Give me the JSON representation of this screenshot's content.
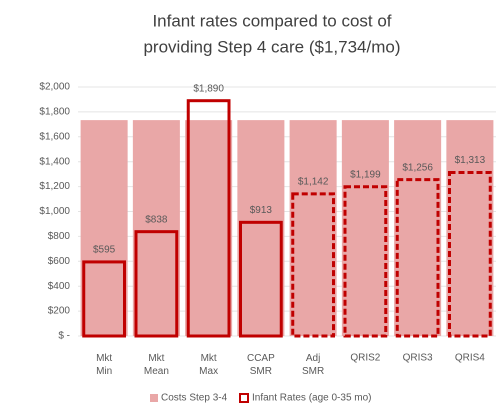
{
  "chart_data": {
    "type": "bar",
    "title": [
      "Infant rates compared to cost of",
      "providing Step 4 care ($1,734/mo)"
    ],
    "categories": [
      "Mkt Min",
      "Mkt Mean",
      "Mkt Max",
      "CCAP SMR",
      "Adj SMR",
      "QRIS2",
      "QRIS3",
      "QRIS4"
    ],
    "series": [
      {
        "name": "Costs Step 3-4",
        "color": "#e9a7a7",
        "values": [
          1734,
          1734,
          1734,
          1734,
          1734,
          1734,
          1734,
          1734
        ]
      },
      {
        "name": "Infant Rates (age 0-35 mo)",
        "color": "#c00000",
        "values": [
          595,
          838,
          1890,
          913,
          1142,
          1199,
          1256,
          1313
        ],
        "value_labels": [
          "$595",
          "$838",
          "$1,890",
          "$913",
          "$1,142",
          "$1,199",
          "$1,256",
          "$1,313"
        ],
        "line_styles": [
          "solid",
          "solid",
          "solid",
          "solid",
          "dashed",
          "dashed",
          "dashed",
          "dashed"
        ]
      }
    ],
    "ylim": [
      0,
      2000
    ],
    "yticks": [
      {
        "value": 0,
        "label": "$ -"
      },
      {
        "value": 200,
        "label": "$200"
      },
      {
        "value": 400,
        "label": "$400"
      },
      {
        "value": 600,
        "label": "$600"
      },
      {
        "value": 800,
        "label": "$800"
      },
      {
        "value": 1000,
        "label": "$1,000"
      },
      {
        "value": 1200,
        "label": "$1,200"
      },
      {
        "value": 1400,
        "label": "$1,400"
      },
      {
        "value": 1600,
        "label": "$1,600"
      },
      {
        "value": 1800,
        "label": "$1,800"
      },
      {
        "value": 2000,
        "label": "$2,000"
      }
    ],
    "grid": true,
    "legend": "bottom"
  }
}
